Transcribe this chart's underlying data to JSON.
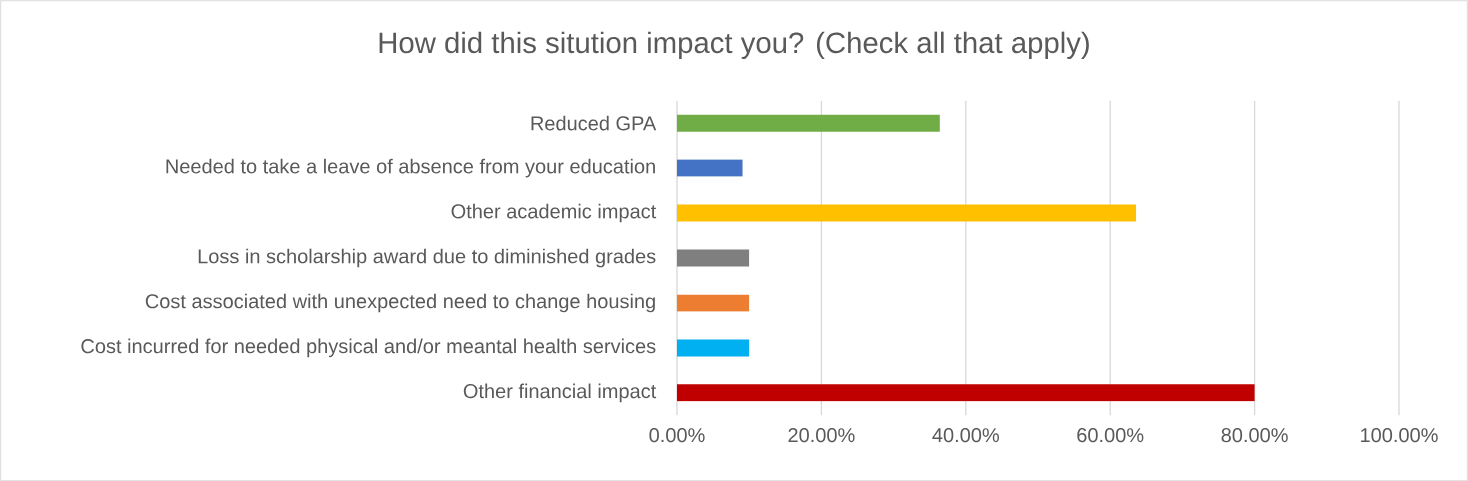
{
  "chart_data": {
    "type": "bar",
    "orientation": "horizontal",
    "title": "How did this sitution impact you? (Check all that apply)",
    "categories": [
      "Reduced GPA",
      "Needed to take a leave of absence from your education",
      "Other academic impact",
      "Loss in scholarship award due to diminished grades",
      "Cost associated with unexpected need to change housing",
      "Cost incurred for needed physical and/or meantal health services",
      "Other financial impact"
    ],
    "values": [
      36.4,
      9.1,
      63.6,
      10,
      10,
      10,
      80
    ],
    "colors": [
      "#70ad47",
      "#4472c4",
      "#ffc000",
      "#7f7f7f",
      "#ed7d31",
      "#00b0f0",
      "#c00000"
    ],
    "xlim": [
      0,
      100
    ],
    "xticks": [
      {
        "value": 0,
        "label": "0.00%"
      },
      {
        "value": 20,
        "label": "20.00%"
      },
      {
        "value": 40,
        "label": "40.00%"
      },
      {
        "value": 60,
        "label": "60.00%"
      },
      {
        "value": 80,
        "label": "80.00%"
      },
      {
        "value": 100,
        "label": "100.00%"
      }
    ],
    "grid": "x"
  }
}
